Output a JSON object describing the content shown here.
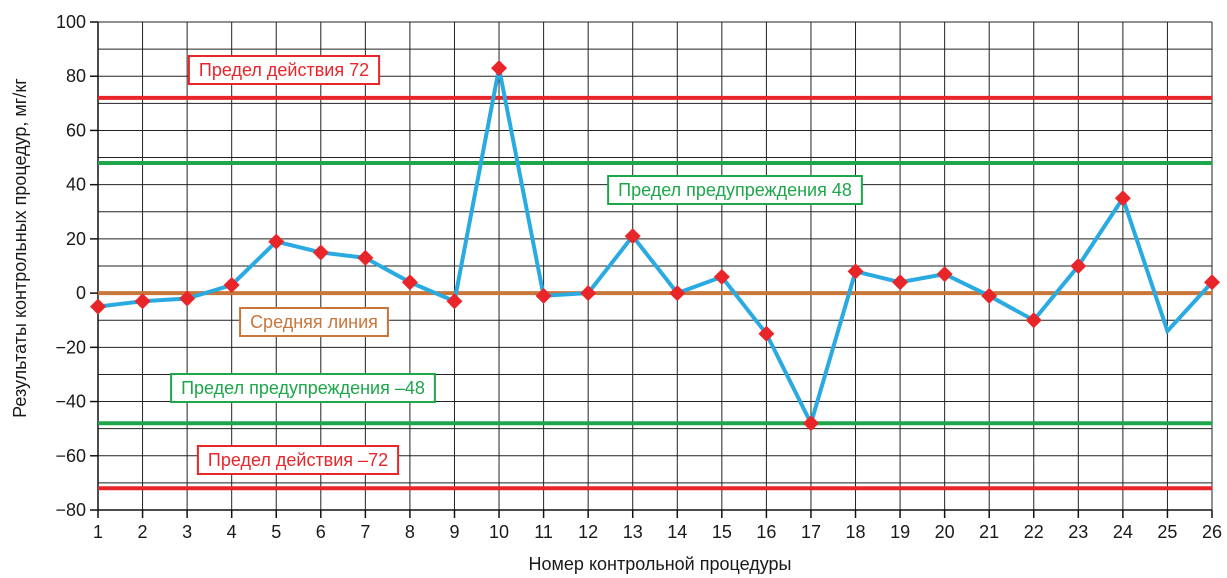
{
  "chart_data": {
    "type": "line",
    "xlabel": "Номер контрольной процедуры",
    "ylabel": "Результаты контрольных процедур, мг/кг",
    "xlim": [
      1,
      26
    ],
    "ylim": [
      -80,
      100
    ],
    "x_ticks": [
      "1",
      "2",
      "3",
      "4",
      "5",
      "6",
      "7",
      "8",
      "9",
      "10",
      "11",
      "12",
      "13",
      "14",
      "15",
      "16",
      "17",
      "18",
      "19",
      "20",
      "21",
      "22",
      "23",
      "24",
      "25",
      "26"
    ],
    "y_ticks": [
      "100",
      "80",
      "60",
      "40",
      "20",
      "0",
      "−20",
      "−40",
      "−60",
      "−80"
    ],
    "grid": true,
    "series": [
      {
        "x": [
          1,
          2,
          3,
          4,
          5,
          6,
          7,
          8,
          9,
          10,
          11,
          12,
          13,
          14,
          15,
          16,
          17,
          18,
          19,
          20,
          21,
          22,
          23,
          24,
          25,
          26
        ],
        "values": [
          -5,
          -3,
          -2,
          3,
          19,
          15,
          13,
          4,
          -3,
          83,
          -1,
          0,
          21,
          0,
          6,
          -15,
          -48,
          8,
          4,
          7,
          -1,
          -10,
          10,
          35,
          -14,
          4
        ],
        "color": "#29aae1",
        "marker_color": "#e8262a",
        "unmarked_points": [
          25
        ]
      }
    ],
    "reference_lines": [
      {
        "value": 72,
        "color": "#e8262a",
        "label": "Предел действия 72"
      },
      {
        "value": 48,
        "color": "#1ea74a",
        "label": "Предел предупреждения 48"
      },
      {
        "value": 0,
        "color": "#c8763a",
        "label": "Средняя линия"
      },
      {
        "value": -48,
        "color": "#1ea74a",
        "label": "Предел предупреждения –48"
      },
      {
        "value": -72,
        "color": "#e8262a",
        "label": "Предел действия –72"
      }
    ]
  }
}
